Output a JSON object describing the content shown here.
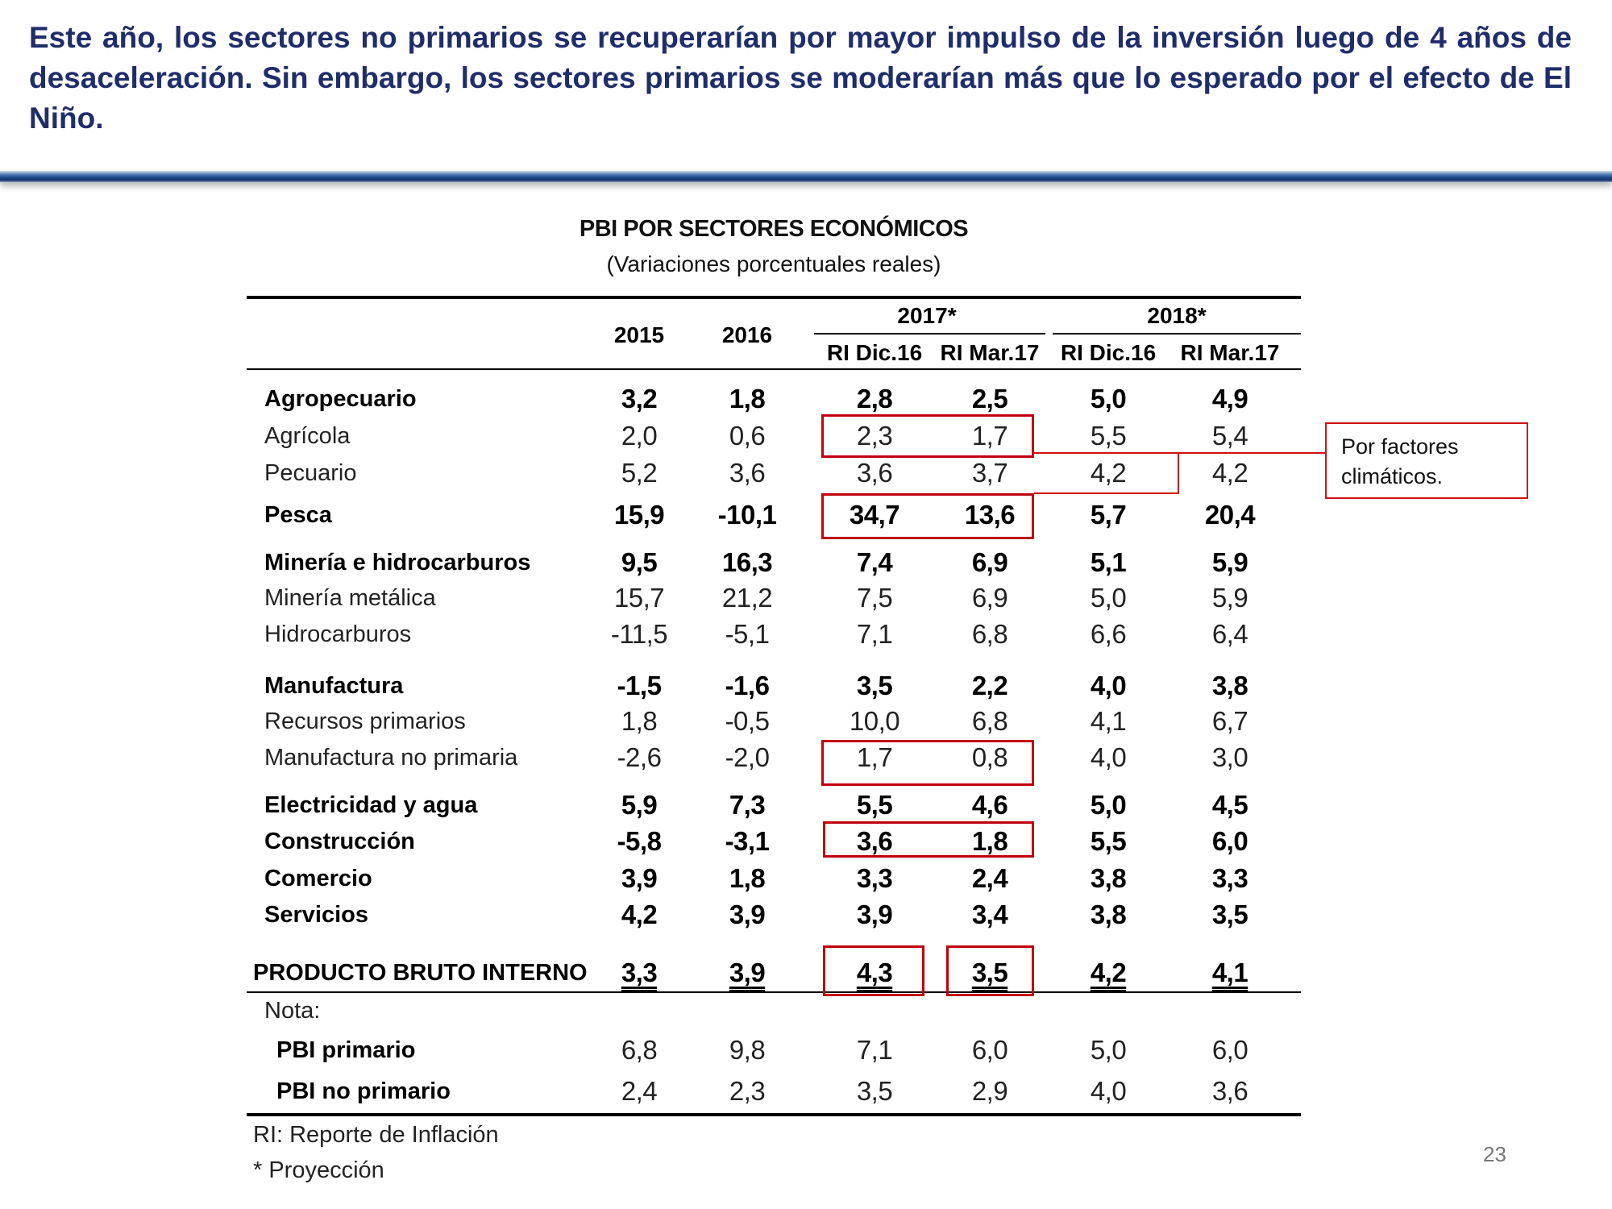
{
  "slide": {
    "title": "Este año, los sectores no primarios se recuperarían por mayor impulso de la inversión luego de 4 años de desaceleración. Sin embargo, los sectores primarios se moderarían más que lo esperado por el efecto de El Niño.",
    "page_number": "23"
  },
  "table": {
    "title": "PBI POR SECTORES ECONÓMICOS",
    "subtitle": "(Variaciones porcentuales reales)",
    "headers": {
      "y2015": "2015",
      "y2016": "2016",
      "y2017": "2017*",
      "y2018": "2018*",
      "ri_dic16_a": "RI Dic.16",
      "ri_mar17_a": "RI Mar.17",
      "ri_dic16_b": "RI Dic.16",
      "ri_mar17_b": "RI Mar.17"
    },
    "rows": [
      {
        "label": "Agropecuario",
        "values": [
          "3,2",
          "1,8",
          "2,8",
          "2,5",
          "5,0",
          "4,9"
        ]
      },
      {
        "label": "Agrícola",
        "values": [
          "2,0",
          "0,6",
          "2,3",
          "1,7",
          "5,5",
          "5,4"
        ]
      },
      {
        "label": "Pecuario",
        "values": [
          "5,2",
          "3,6",
          "3,6",
          "3,7",
          "4,2",
          "4,2"
        ]
      },
      {
        "label": "Pesca",
        "values": [
          "15,9",
          "-10,1",
          "34,7",
          "13,6",
          "5,7",
          "20,4"
        ]
      },
      {
        "label": "Minería e hidrocarburos",
        "values": [
          "9,5",
          "16,3",
          "7,4",
          "6,9",
          "5,1",
          "5,9"
        ]
      },
      {
        "label": "Minería metálica",
        "values": [
          "15,7",
          "21,2",
          "7,5",
          "6,9",
          "5,0",
          "5,9"
        ]
      },
      {
        "label": "Hidrocarburos",
        "values": [
          "-11,5",
          "-5,1",
          "7,1",
          "6,8",
          "6,6",
          "6,4"
        ]
      },
      {
        "label": "Manufactura",
        "values": [
          "-1,5",
          "-1,6",
          "3,5",
          "2,2",
          "4,0",
          "3,8"
        ]
      },
      {
        "label": "Recursos primarios",
        "values": [
          "1,8",
          "-0,5",
          "10,0",
          "6,8",
          "4,1",
          "6,7"
        ]
      },
      {
        "label": "Manufactura no primaria",
        "values": [
          "-2,6",
          "-2,0",
          "1,7",
          "0,8",
          "4,0",
          "3,0"
        ]
      },
      {
        "label": "Electricidad y agua",
        "values": [
          "5,9",
          "7,3",
          "5,5",
          "4,6",
          "5,0",
          "4,5"
        ]
      },
      {
        "label": "Construcción",
        "values": [
          "-5,8",
          "-3,1",
          "3,6",
          "1,8",
          "5,5",
          "6,0"
        ]
      },
      {
        "label": "Comercio",
        "values": [
          "3,9",
          "1,8",
          "3,3",
          "2,4",
          "3,8",
          "3,3"
        ]
      },
      {
        "label": "Servicios",
        "values": [
          "4,2",
          "3,9",
          "3,9",
          "3,4",
          "3,8",
          "3,5"
        ]
      },
      {
        "label": "PRODUCTO BRUTO INTERNO",
        "values": [
          "3,3",
          "3,9",
          "4,3",
          "3,5",
          "4,2",
          "4,1"
        ]
      },
      {
        "label": "Nota:",
        "values": []
      },
      {
        "label": "PBI primario",
        "values": [
          "6,8",
          "9,8",
          "7,1",
          "6,0",
          "5,0",
          "6,0"
        ]
      },
      {
        "label": "PBI no primario",
        "values": [
          "2,4",
          "2,3",
          "3,5",
          "2,9",
          "4,0",
          "3,6"
        ]
      }
    ],
    "footnotes": [
      "RI: Reporte de Inflación",
      "* Proyección"
    ]
  },
  "callout": {
    "text": "Por factores climáticos."
  },
  "colors": {
    "title": "#1f2d6b",
    "highlight": "#c0000c"
  }
}
